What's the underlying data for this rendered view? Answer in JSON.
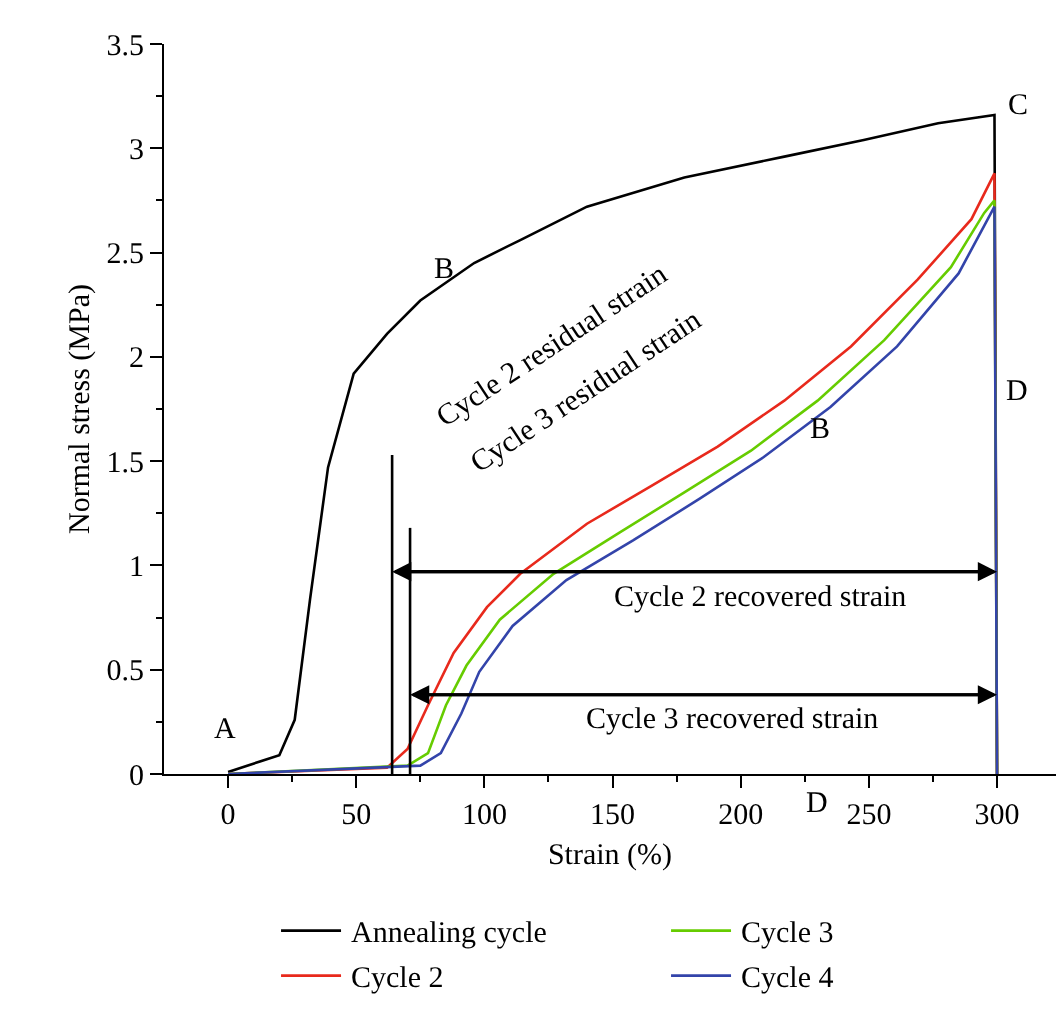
{
  "chart_data": {
    "type": "line",
    "xlabel": "Strain (%)",
    "ylabel": "Normal stress (MPa)",
    "xlim": [
      -25,
      323
    ],
    "xticks": [
      0,
      50,
      100,
      150,
      200,
      250,
      300
    ],
    "ylim": [
      0,
      3.5
    ],
    "yticks": [
      0,
      0.5,
      1,
      1.5,
      2,
      2.5,
      3,
      3.5
    ],
    "legend": "bottom",
    "marker": "none",
    "line_style": "solid",
    "series": [
      {
        "name": "Annealing cycle",
        "color": "#000000",
        "x": [
          0,
          20,
          26,
          32,
          39,
          49,
          62,
          75,
          96,
          114,
          140,
          178,
          217,
          248,
          277,
          299,
          300
        ],
        "values": [
          0.01,
          0.09,
          0.26,
          0.84,
          1.47,
          1.92,
          2.11,
          2.27,
          2.45,
          2.56,
          2.72,
          2.86,
          2.96,
          3.04,
          3.12,
          3.16,
          0
        ]
      },
      {
        "name": "Cycle 2",
        "color": "#e8291c",
        "x": [
          0,
          62,
          70,
          78,
          88,
          101,
          114,
          140,
          165,
          191,
          217,
          243,
          269,
          290,
          299,
          300
        ],
        "values": [
          0,
          0.03,
          0.12,
          0.33,
          0.58,
          0.8,
          0.96,
          1.2,
          1.38,
          1.57,
          1.79,
          2.05,
          2.37,
          2.66,
          2.88,
          0
        ]
      },
      {
        "name": "Cycle 3",
        "color": "#66cc00",
        "x": [
          0,
          70,
          78,
          85,
          93,
          106,
          127,
          153,
          178,
          204,
          230,
          256,
          282,
          295,
          299,
          300
        ],
        "values": [
          0,
          0.04,
          0.1,
          0.33,
          0.52,
          0.74,
          0.96,
          1.16,
          1.35,
          1.55,
          1.79,
          2.08,
          2.43,
          2.69,
          2.75,
          0
        ]
      },
      {
        "name": "Cycle 4",
        "color": "#3344aa",
        "x": [
          0,
          75,
          83,
          91,
          98,
          111,
          132,
          158,
          184,
          209,
          235,
          261,
          285,
          299,
          300
        ],
        "values": [
          0,
          0.04,
          0.1,
          0.29,
          0.49,
          0.71,
          0.93,
          1.12,
          1.32,
          1.52,
          1.76,
          2.05,
          2.4,
          2.72,
          0
        ]
      },
      {
        "color": "#000000",
        "x": [
          64,
          64
        ],
        "values": [
          0,
          1.53
        ]
      },
      {
        "color": "#000000",
        "x": [
          71,
          71
        ],
        "values": [
          0,
          1.18
        ]
      }
    ],
    "annotations": [
      "Cycle 2 residual strain",
      "Cycle 3 residual strain",
      "Cycle 2 recovered strain",
      "Cycle 3 recovered strain",
      "A",
      "B",
      "C",
      "D",
      "B",
      "D"
    ]
  }
}
